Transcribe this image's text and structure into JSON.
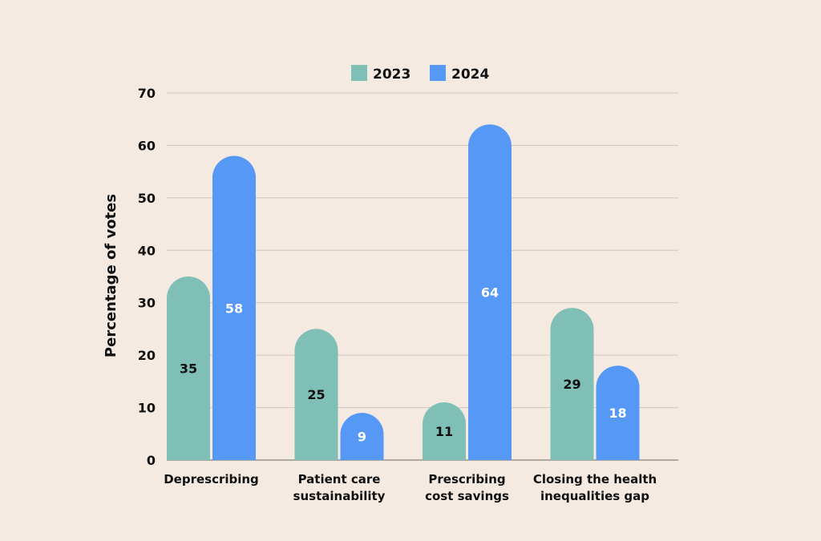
{
  "chart_data": {
    "type": "bar",
    "categories": [
      [
        "Deprescribing"
      ],
      [
        "Patient care",
        "sustainability"
      ],
      [
        "Prescribing",
        "cost savings"
      ],
      [
        "Closing the health",
        "inequalities gap"
      ]
    ],
    "series": [
      {
        "name": "2023",
        "values": [
          35,
          25,
          11,
          29
        ],
        "color": "#80BFB6",
        "label_color": "#111111"
      },
      {
        "name": "2024",
        "values": [
          58,
          9,
          64,
          18
        ],
        "color": "#5698F6",
        "label_color": "#FFFFFF"
      }
    ],
    "yticks": [
      0,
      10,
      20,
      30,
      40,
      50,
      60,
      70
    ],
    "ylim": [
      0,
      70
    ],
    "ylabel": "Percentage of votes",
    "grid": true,
    "legend_position": "top-center",
    "bar_shape": "rounded-top"
  }
}
